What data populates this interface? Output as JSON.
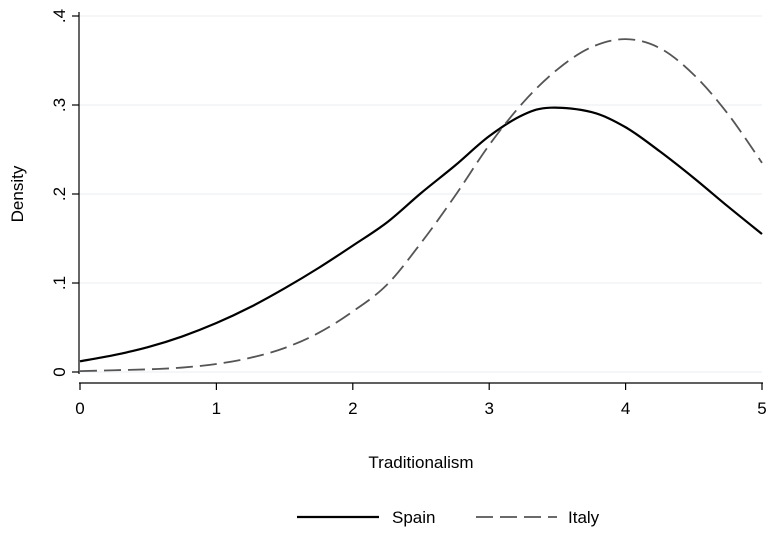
{
  "chart_data": {
    "type": "line",
    "title": "",
    "xlabel": "Traditionalism",
    "ylabel": "Density",
    "xlim": [
      0,
      5
    ],
    "ylim": [
      0,
      0.4
    ],
    "xticks": [
      {
        "value": 0,
        "label": "0"
      },
      {
        "value": 1,
        "label": "1"
      },
      {
        "value": 2,
        "label": "2"
      },
      {
        "value": 3,
        "label": "3"
      },
      {
        "value": 4,
        "label": "4"
      },
      {
        "value": 5,
        "label": "5"
      }
    ],
    "yticks": [
      {
        "value": 0,
        "label": "0"
      },
      {
        "value": 0.1,
        "label": ".1"
      },
      {
        "value": 0.2,
        "label": ".2"
      },
      {
        "value": 0.3,
        "label": ".3"
      },
      {
        "value": 0.4,
        "label": ".4"
      }
    ],
    "grid": true,
    "legend_position": "bottom",
    "series": [
      {
        "name": "Spain",
        "style": "solid",
        "color": "#000000",
        "x": [
          0,
          0.25,
          0.5,
          0.75,
          1,
          1.25,
          1.5,
          1.75,
          2,
          2.25,
          2.5,
          2.75,
          3,
          3.25,
          3.45,
          3.75,
          4,
          4.25,
          4.5,
          4.75,
          5
        ],
        "y": [
          0.012,
          0.019,
          0.028,
          0.04,
          0.055,
          0.073,
          0.094,
          0.117,
          0.142,
          0.168,
          0.201,
          0.232,
          0.265,
          0.289,
          0.297,
          0.292,
          0.275,
          0.248,
          0.218,
          0.186,
          0.155
        ]
      },
      {
        "name": "Italy",
        "style": "dashed",
        "color": "#555555",
        "x": [
          0,
          0.25,
          0.5,
          0.75,
          1,
          1.25,
          1.5,
          1.75,
          2,
          2.25,
          2.5,
          2.75,
          3,
          3.25,
          3.5,
          3.75,
          4,
          4.25,
          4.5,
          4.75,
          5
        ],
        "y": [
          0.001,
          0.002,
          0.003,
          0.005,
          0.009,
          0.016,
          0.027,
          0.044,
          0.068,
          0.098,
          0.145,
          0.198,
          0.255,
          0.303,
          0.34,
          0.365,
          0.374,
          0.364,
          0.334,
          0.29,
          0.235
        ]
      }
    ]
  }
}
